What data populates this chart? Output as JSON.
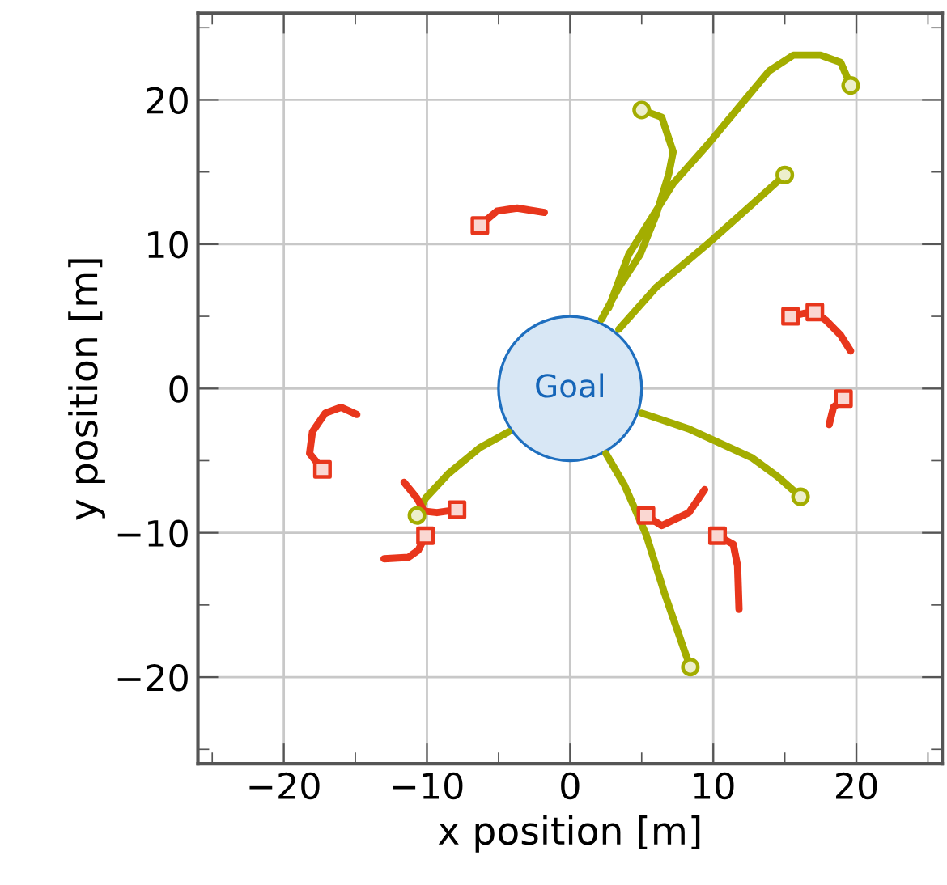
{
  "chart_data": {
    "type": "line",
    "xlabel": "x position [m]",
    "ylabel": "y position [m]",
    "xlim": [
      -26,
      26
    ],
    "ylim": [
      -26,
      26
    ],
    "xticks": [
      {
        "value": -25,
        "label": null
      },
      {
        "value": -20,
        "label": "−20"
      },
      {
        "value": -15,
        "label": null
      },
      {
        "value": -10,
        "label": "−10"
      },
      {
        "value": -5,
        "label": null
      },
      0,
      {
        "value": 5,
        "label": null
      },
      10,
      {
        "value": 15,
        "label": null
      },
      20,
      {
        "value": 25,
        "label": null
      }
    ],
    "yticks": [
      {
        "value": -25,
        "label": null
      },
      {
        "value": -20,
        "label": "−20"
      },
      {
        "value": -15,
        "label": null
      },
      {
        "value": -10,
        "label": "−10"
      },
      {
        "value": -5,
        "label": null
      },
      0,
      {
        "value": 5,
        "label": null
      },
      10,
      {
        "value": 15,
        "label": null
      },
      20,
      {
        "value": 25,
        "label": null
      }
    ],
    "grid": true,
    "line_style": "solid",
    "annotations": [
      "Goal"
    ],
    "series": [
      {
        "color": "#a3ad00",
        "marker": "none",
        "x": [
          2.7,
          4.1,
          7.2,
          9.7,
          12.3,
          13.9,
          15.6,
          17.5,
          18.9,
          19.6,
          null,
          2.2,
          3.4,
          4.9,
          6.0,
          6.9,
          7.2,
          6.4,
          5.0,
          null,
          3.4,
          6.0,
          9.7,
          13.1,
          15.0,
          null,
          5.0,
          8.3,
          12.7,
          14.5,
          16.1,
          null,
          2.5,
          3.8,
          5.3,
          6.6,
          8.0,
          8.4,
          null,
          -4.3,
          -6.3,
          -8.5,
          -10.1,
          -10.7
        ],
        "values": [
          5.6,
          9.3,
          14.2,
          17.0,
          20.1,
          22.0,
          23.1,
          23.1,
          22.6,
          21.0,
          null,
          4.8,
          7.0,
          9.3,
          12.0,
          14.9,
          16.4,
          18.8,
          19.3,
          null,
          4.1,
          7.0,
          10.1,
          13.1,
          14.8,
          null,
          -1.7,
          -2.8,
          -4.8,
          -6.1,
          -7.5,
          null,
          -4.5,
          -6.7,
          -10.1,
          -14.2,
          -18.2,
          -19.3,
          null,
          -3.0,
          -4.1,
          -5.9,
          -7.6,
          -8.8
        ]
      },
      {
        "color": "#e8361c",
        "marker": "none",
        "x": [
          -6.3,
          -5.1,
          -3.7,
          -1.8,
          null,
          15.4,
          16.3,
          17.1,
          17.9,
          18.9,
          19.6,
          null,
          19.1,
          18.4,
          18.1,
          null,
          10.3,
          11.4,
          11.7,
          11.8,
          null,
          5.3,
          6.4,
          8.3,
          9.4,
          null,
          -17.3,
          -18.2,
          -18.0,
          -17.1,
          -16.0,
          -14.9,
          null,
          -7.9,
          -9.3,
          -10.2,
          -10.7,
          -11.6,
          null,
          -10.1,
          -10.6,
          -11.3,
          -13.0
        ],
        "values": [
          11.3,
          12.3,
          12.5,
          12.2,
          null,
          5.0,
          5.2,
          5.3,
          4.7,
          3.7,
          2.6,
          null,
          -0.7,
          -1.3,
          -2.5,
          null,
          -10.2,
          -10.8,
          -12.3,
          -15.3,
          null,
          -8.8,
          -9.5,
          -8.6,
          -7.0,
          null,
          -5.6,
          -4.5,
          -3.0,
          -1.7,
          -1.3,
          -1.8,
          null,
          -8.4,
          -8.6,
          -8.5,
          -7.6,
          -6.5,
          null,
          -10.2,
          -11.2,
          -11.7,
          -11.8
        ]
      },
      {
        "type": "scatter",
        "color": "#a3ad00",
        "marker": "circle",
        "x": [
          19.6,
          5.0,
          15.0,
          16.1,
          8.4,
          -10.7
        ],
        "values": [
          21.0,
          19.3,
          14.8,
          -7.5,
          -19.3,
          -8.8
        ]
      },
      {
        "type": "scatter",
        "color": "#e8361c",
        "marker": "square",
        "x": [
          -6.3,
          15.4,
          17.1,
          19.1,
          10.3,
          5.3,
          -17.3,
          -7.9,
          -10.1
        ],
        "values": [
          11.3,
          5.0,
          5.3,
          -0.7,
          -10.2,
          -8.8,
          -5.6,
          -8.4,
          -10.2
        ]
      }
    ]
  }
}
